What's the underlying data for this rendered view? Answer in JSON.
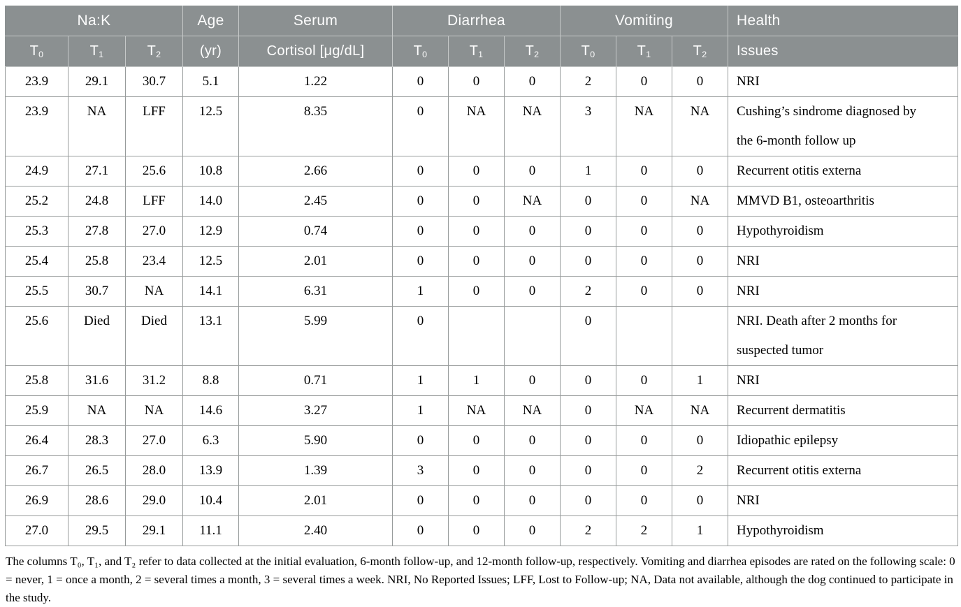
{
  "colors": {
    "header_bg": "#8b9091",
    "header_text": "#ffffff",
    "header_grid_line": "#c6c9c9",
    "body_grid_line": "#979b9b",
    "body_text": "#000000"
  },
  "table": {
    "header": {
      "groups": [
        "Na:K",
        "Age",
        "Serum",
        "Diarrhea",
        "Vomiting",
        "Health"
      ],
      "sub": {
        "t_base": "T",
        "t_subs": [
          "0",
          "1",
          "2"
        ],
        "age": "(yr)",
        "serum": "Cortisol [μg/dL]",
        "issues": "Issues"
      }
    },
    "rows": [
      [
        "23.9",
        "29.1",
        "30.7",
        "5.1",
        "1.22",
        "0",
        "0",
        "0",
        "2",
        "0",
        "0",
        "NRI"
      ],
      [
        "23.9",
        "NA",
        "LFF",
        "12.5",
        "8.35",
        "0",
        "NA",
        "NA",
        "3",
        "NA",
        "NA",
        "Cushing’s sindrome diagnosed by the 6-month follow up"
      ],
      [
        "24.9",
        "27.1",
        "25.6",
        "10.8",
        "2.66",
        "0",
        "0",
        "0",
        "1",
        "0",
        "0",
        "Recurrent otitis externa"
      ],
      [
        "25.2",
        "24.8",
        "LFF",
        "14.0",
        "2.45",
        "0",
        "0",
        "NA",
        "0",
        "0",
        "NA",
        "MMVD B1, osteoarthritis"
      ],
      [
        "25.3",
        "27.8",
        "27.0",
        "12.9",
        "0.74",
        "0",
        "0",
        "0",
        "0",
        "0",
        "0",
        "Hypothyroidism"
      ],
      [
        "25.4",
        "25.8",
        "23.4",
        "12.5",
        "2.01",
        "0",
        "0",
        "0",
        "0",
        "0",
        "0",
        "NRI"
      ],
      [
        "25.5",
        "30.7",
        "NA",
        "14.1",
        "6.31",
        "1",
        "0",
        "0",
        "2",
        "0",
        "0",
        "NRI"
      ],
      [
        "25.6",
        "Died",
        "Died",
        "13.1",
        "5.99",
        "0",
        "",
        "",
        "0",
        "",
        "",
        "NRI. Death after 2 months for suspected tumor"
      ],
      [
        "25.8",
        "31.6",
        "31.2",
        "8.8",
        "0.71",
        "1",
        "1",
        "0",
        "0",
        "0",
        "1",
        "NRI"
      ],
      [
        "25.9",
        "NA",
        "NA",
        "14.6",
        "3.27",
        "1",
        "NA",
        "NA",
        "0",
        "NA",
        "NA",
        "Recurrent dermatitis"
      ],
      [
        "26.4",
        "28.3",
        "27.0",
        "6.3",
        "5.90",
        "0",
        "0",
        "0",
        "0",
        "0",
        "0",
        "Idiopathic epilepsy"
      ],
      [
        "26.7",
        "26.5",
        "28.0",
        "13.9",
        "1.39",
        "3",
        "0",
        "0",
        "0",
        "0",
        "2",
        "Recurrent otitis externa"
      ],
      [
        "26.9",
        "28.6",
        "29.0",
        "10.4",
        "2.01",
        "0",
        "0",
        "0",
        "0",
        "0",
        "0",
        "NRI"
      ],
      [
        "27.0",
        "29.5",
        "29.1",
        "11.1",
        "2.40",
        "0",
        "0",
        "0",
        "2",
        "2",
        "1",
        "Hypothyroidism"
      ]
    ]
  },
  "footnote": "The columns T₀, T₁, and T₂ refer to data collected at the initial evaluation, 6-month follow-up, and 12-month follow-up, respectively. Vomiting and diarrhea episodes are rated on the following scale: 0 = never, 1 = once a month, 2 = several times a month, 3 = several times a week. NRI, No Reported Issues; LFF, Lost to Follow-up; NA, Data not available, although the dog continued to participate in the study."
}
